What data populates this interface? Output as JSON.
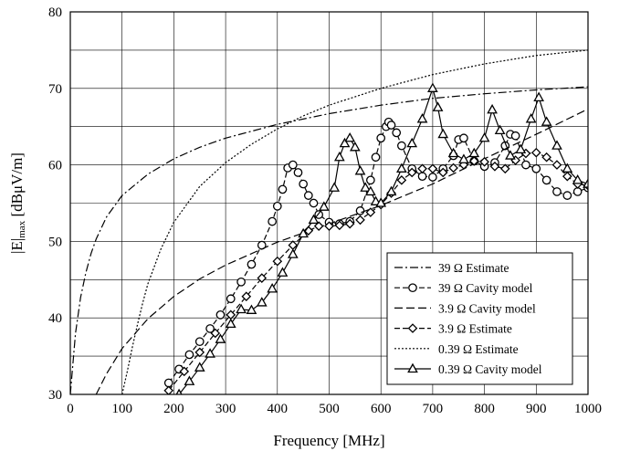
{
  "chart_data": {
    "type": "line",
    "xlabel": "Frequency [MHz]",
    "ylabel_main": "|E|",
    "ylabel_sub": "max",
    "ylabel_unit": " [dBμV/m]",
    "xlim": [
      0,
      1000
    ],
    "ylim": [
      30,
      80
    ],
    "x_ticks": [
      0,
      100,
      200,
      300,
      400,
      500,
      600,
      700,
      800,
      900,
      1000
    ],
    "y_ticks": [
      30,
      40,
      50,
      60,
      70,
      80
    ],
    "grid": true,
    "legend_placement": "bottom-right",
    "series": [
      {
        "name": "39 Ω Estimate",
        "dash": "dashdot",
        "marker": "none",
        "x": [
          0,
          10,
          20,
          30,
          40,
          50,
          70,
          100,
          150,
          200,
          250,
          300,
          400,
          500,
          600,
          700,
          800,
          900,
          1000
        ],
        "y": [
          30,
          38,
          42.7,
          45.9,
          48.4,
          50.3,
          53.2,
          56.0,
          58.8,
          60.8,
          62.3,
          63.5,
          65.3,
          66.7,
          67.8,
          68.7,
          69.3,
          69.8,
          70.2
        ]
      },
      {
        "name": "39 Ω Cavity model",
        "dash": "dash",
        "marker": "circle",
        "x": [
          190,
          210,
          230,
          250,
          270,
          290,
          310,
          330,
          350,
          370,
          390,
          400,
          410,
          420,
          430,
          440,
          450,
          460,
          470,
          480,
          500,
          520,
          540,
          560,
          580,
          590,
          600,
          610,
          615,
          620,
          630,
          640,
          660,
          680,
          700,
          720,
          740,
          750,
          760,
          780,
          800,
          820,
          840,
          850,
          860,
          880,
          900,
          920,
          940,
          960,
          980,
          1000
        ],
        "y": [
          31.5,
          33.3,
          35.2,
          36.9,
          38.6,
          40.4,
          42.5,
          44.7,
          47.0,
          49.5,
          52.6,
          54.6,
          56.8,
          59.6,
          60.0,
          59.0,
          57.5,
          56.0,
          55.0,
          53.5,
          52.5,
          52.3,
          52.6,
          54.0,
          58.0,
          61.0,
          63.5,
          65.0,
          65.6,
          65.2,
          64.2,
          62.5,
          59.5,
          58.5,
          58.4,
          59.5,
          61.2,
          63.3,
          63.5,
          60.5,
          59.8,
          60.3,
          62.5,
          64.0,
          63.8,
          60.0,
          59.5,
          58.0,
          56.5,
          56.0,
          56.5,
          57.0
        ]
      },
      {
        "name": "3.9 Ω Cavity model",
        "dash": "longdash",
        "marker": "none",
        "x": [
          50,
          70,
          100,
          150,
          200,
          250,
          300,
          400,
          500,
          600,
          700,
          800,
          900,
          1000
        ],
        "y": [
          30,
          32.7,
          36.0,
          39.9,
          42.8,
          45.1,
          46.9,
          49.9,
          52.3,
          54.7,
          57.5,
          60.8,
          64.0,
          67.3
        ]
      },
      {
        "name": "3.9 Ω Estimate",
        "dash": "dash",
        "marker": "diamond",
        "x": [
          190,
          220,
          250,
          280,
          310,
          340,
          370,
          400,
          430,
          460,
          480,
          500,
          520,
          540,
          560,
          580,
          600,
          620,
          640,
          660,
          680,
          700,
          720,
          740,
          760,
          780,
          800,
          820,
          840,
          860,
          880,
          900,
          920,
          940,
          960,
          980,
          1000
        ],
        "y": [
          30.5,
          33.0,
          35.5,
          38.0,
          40.4,
          42.8,
          45.2,
          47.4,
          49.5,
          51.4,
          52.0,
          52.0,
          52.1,
          52.3,
          52.8,
          53.8,
          54.8,
          56.3,
          58.0,
          59.0,
          59.5,
          59.5,
          59.0,
          59.6,
          60.0,
          60.5,
          60.4,
          59.8,
          59.5,
          60.6,
          61.5,
          61.6,
          61.0,
          60.0,
          58.5,
          57.5,
          57.3
        ]
      },
      {
        "name": "0.39 Ω Estimate",
        "dash": "dot",
        "marker": "none",
        "x": [
          100,
          110,
          120,
          130,
          140,
          150,
          175,
          200,
          250,
          300,
          350,
          400,
          450,
          500,
          600,
          700,
          800,
          900,
          1000
        ],
        "y": [
          30,
          33.0,
          36.2,
          39.2,
          42.0,
          44.5,
          49.0,
          52.5,
          57.2,
          60.3,
          62.7,
          64.7,
          66.4,
          67.8,
          70.0,
          71.8,
          73.2,
          74.3,
          75.0
        ]
      },
      {
        "name": "0.39 Ω Cavity model",
        "dash": "solid",
        "marker": "triangle",
        "x": [
          210,
          230,
          250,
          270,
          290,
          310,
          330,
          350,
          370,
          390,
          410,
          430,
          450,
          470,
          490,
          510,
          520,
          530,
          540,
          550,
          560,
          570,
          580,
          590,
          600,
          620,
          640,
          660,
          680,
          700,
          710,
          720,
          740,
          760,
          780,
          800,
          815,
          830,
          850,
          870,
          890,
          905,
          920,
          940,
          960,
          980,
          1000
        ],
        "y": [
          30.0,
          31.7,
          33.5,
          35.3,
          37.2,
          39.2,
          41.1,
          41.0,
          42.0,
          43.8,
          45.9,
          48.3,
          51.0,
          52.8,
          54.5,
          57.0,
          61.0,
          62.8,
          63.5,
          62.3,
          59.2,
          57.0,
          56.5,
          55.2,
          55.0,
          56.5,
          59.5,
          62.8,
          66.0,
          70.0,
          67.5,
          64.0,
          61.5,
          60.7,
          61.5,
          63.5,
          67.2,
          64.5,
          61.2,
          62.0,
          66.0,
          68.8,
          65.6,
          62.5,
          59.5,
          58.0,
          57.5
        ]
      }
    ]
  }
}
